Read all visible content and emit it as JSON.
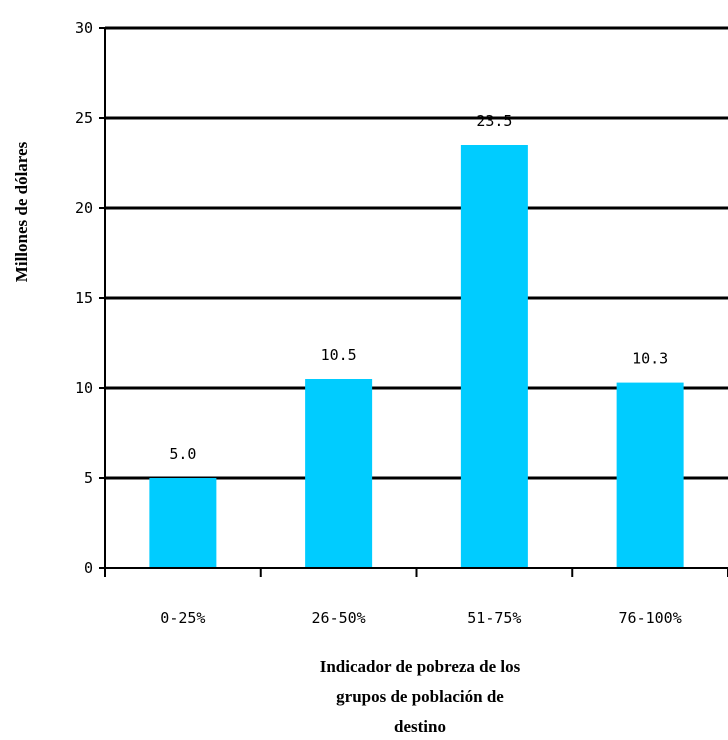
{
  "chart_data": {
    "type": "bar",
    "title": "",
    "categories": [
      "0-25%",
      "26-50%",
      "51-75%",
      "76-100%"
    ],
    "values": [
      5.0,
      10.5,
      23.5,
      10.3
    ],
    "data_labels": [
      "5.0",
      "10.5",
      "23.5",
      "10.3"
    ],
    "ylim": [
      0,
      30
    ],
    "yticks": [
      "0",
      "5",
      "10",
      "15",
      "20",
      "25",
      "30"
    ],
    "ylabel": "Millones de dólares",
    "xlabel_lines": [
      "Indicador de pobreza de los",
      "grupos de población de",
      "destino"
    ],
    "grid": true,
    "legend": "none",
    "colors": {
      "bar": "#00CCFF",
      "grid": "#000000",
      "text": "#000000"
    }
  }
}
